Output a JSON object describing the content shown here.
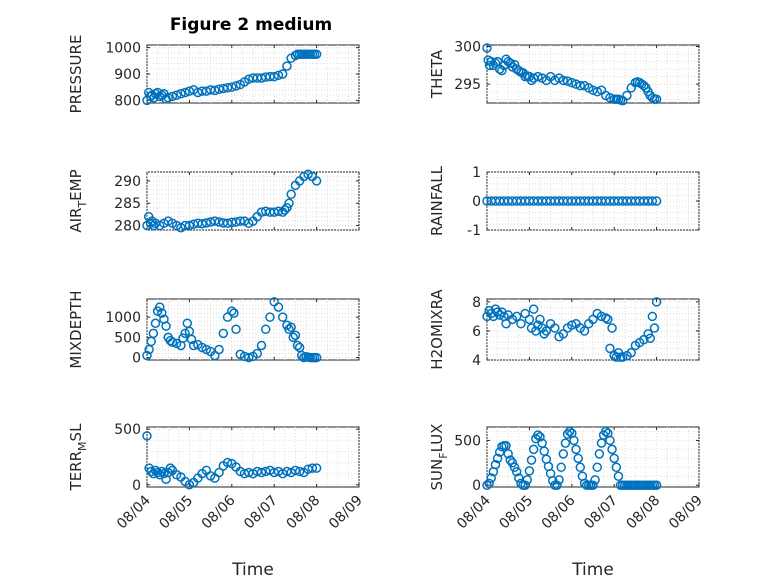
{
  "figure": {
    "title": "Figure 2 medium",
    "marker_color": "#0072bd"
  },
  "chart_data": [
    {
      "id": "pressure",
      "type": "scatter",
      "title": "Figure 2 medium",
      "ylabel": "PRESSURE",
      "ylim": [
        790,
        1010
      ],
      "yticks": [
        800,
        900,
        1000
      ],
      "xlim": [
        0,
        5
      ],
      "xticks": [
        "08/04",
        "08/05",
        "08/06",
        "08/07",
        "08/08",
        "08/09"
      ],
      "xlabel": "",
      "grid": true,
      "x": [
        0,
        0.04,
        0.08,
        0.12,
        0.16,
        0.2,
        0.25,
        0.3,
        0.35,
        0.4,
        0.45,
        0.5,
        0.6,
        0.7,
        0.8,
        0.9,
        1.0,
        1.1,
        1.2,
        1.3,
        1.4,
        1.5,
        1.6,
        1.7,
        1.8,
        1.9,
        2.0,
        2.1,
        2.2,
        2.3,
        2.4,
        2.5,
        2.6,
        2.7,
        2.8,
        2.9,
        3.0,
        3.1,
        3.2,
        3.3,
        3.4,
        3.5,
        3.55,
        3.6,
        3.65,
        3.7,
        3.75,
        3.8,
        3.85,
        3.9,
        3.95,
        4.0
      ],
      "y": [
        800,
        830,
        815,
        820,
        810,
        825,
        830,
        815,
        820,
        825,
        805,
        810,
        815,
        820,
        825,
        830,
        835,
        840,
        830,
        835,
        835,
        840,
        838,
        842,
        845,
        848,
        850,
        855,
        860,
        870,
        880,
        885,
        885,
        885,
        888,
        890,
        890,
        895,
        900,
        930,
        960,
        970,
        975,
        975,
        975,
        975,
        975,
        975,
        975,
        975,
        975,
        975
      ]
    },
    {
      "id": "theta",
      "type": "scatter",
      "ylabel": "THETA",
      "ylim": [
        292.5,
        300.2
      ],
      "yticks": [
        295,
        300
      ],
      "xlim": [
        0,
        5
      ],
      "xticks": [
        "08/04",
        "08/05",
        "08/06",
        "08/07",
        "08/08",
        "08/09"
      ],
      "xlabel": "",
      "grid": true,
      "x": [
        0,
        0.03,
        0.06,
        0.1,
        0.15,
        0.2,
        0.25,
        0.3,
        0.35,
        0.4,
        0.45,
        0.5,
        0.55,
        0.6,
        0.65,
        0.7,
        0.75,
        0.8,
        0.85,
        0.9,
        0.95,
        1.0,
        1.05,
        1.1,
        1.2,
        1.3,
        1.4,
        1.5,
        1.6,
        1.7,
        1.8,
        1.9,
        2.0,
        2.1,
        2.2,
        2.3,
        2.4,
        2.5,
        2.6,
        2.7,
        2.8,
        2.9,
        3.0,
        3.05,
        3.1,
        3.15,
        3.2,
        3.3,
        3.4,
        3.5,
        3.55,
        3.6,
        3.65,
        3.7,
        3.75,
        3.8,
        3.85,
        3.9,
        3.95,
        4.0
      ],
      "y": [
        299.8,
        298.2,
        297.5,
        298,
        297.5,
        297.8,
        298,
        297,
        296.8,
        297.5,
        298.3,
        298,
        297.8,
        297.3,
        297.6,
        297,
        296.8,
        296.6,
        296.5,
        296,
        296.1,
        296,
        295.5,
        295.8,
        296,
        295.8,
        295.5,
        296,
        295.5,
        295.8,
        295.5,
        295.4,
        295.2,
        295,
        294.8,
        294.8,
        294.5,
        294.2,
        294,
        294.2,
        293.5,
        293.2,
        293,
        293,
        293,
        292.9,
        292.8,
        293.5,
        294.5,
        295.2,
        295.3,
        295.2,
        295,
        294.8,
        294.5,
        294,
        293.5,
        293.2,
        293,
        293
      ]
    },
    {
      "id": "air_temp",
      "type": "scatter",
      "ylabel": "AIR",
      "ylabel_sub": "T",
      "ylabel_rest": "EMP",
      "ylim": [
        279,
        292
      ],
      "yticks": [
        280,
        285,
        290
      ],
      "xlim": [
        0,
        5
      ],
      "xticks": [
        "08/04",
        "08/05",
        "08/06",
        "08/07",
        "08/08",
        "08/09"
      ],
      "xlabel": "",
      "grid": true,
      "x": [
        0,
        0.04,
        0.08,
        0.12,
        0.16,
        0.2,
        0.3,
        0.4,
        0.5,
        0.6,
        0.7,
        0.8,
        0.9,
        1.0,
        1.1,
        1.2,
        1.3,
        1.4,
        1.5,
        1.6,
        1.7,
        1.8,
        1.9,
        2.0,
        2.1,
        2.2,
        2.3,
        2.4,
        2.5,
        2.6,
        2.7,
        2.8,
        2.9,
        3.0,
        3.1,
        3.2,
        3.25,
        3.3,
        3.35,
        3.4,
        3.5,
        3.6,
        3.7,
        3.8,
        3.9,
        4.0
      ],
      "y": [
        280,
        282,
        280.5,
        281,
        280,
        280.5,
        280,
        280.5,
        281,
        280.5,
        280,
        279.5,
        280,
        280,
        280.3,
        280.5,
        280.4,
        280.6,
        280.8,
        281,
        280.8,
        280.6,
        280.5,
        280.7,
        280.8,
        281,
        281,
        280.5,
        281,
        282,
        283,
        283.2,
        283,
        283,
        283.2,
        283,
        283.5,
        284,
        285,
        287,
        289,
        290,
        291,
        291.5,
        291,
        290
      ]
    },
    {
      "id": "rainfall",
      "type": "scatter",
      "ylabel": "RAINFALL",
      "ylim": [
        -1,
        1
      ],
      "yticks": [
        -1,
        0,
        1
      ],
      "xlim": [
        0,
        5
      ],
      "xticks": [
        "08/04",
        "08/05",
        "08/06",
        "08/07",
        "08/08",
        "08/09"
      ],
      "xlabel": "",
      "grid": true,
      "x_start": 0,
      "x_end": 4,
      "n_points": 41,
      "value": 0
    },
    {
      "id": "mixdepth",
      "type": "scatter",
      "ylabel": "MIXDEPTH",
      "ylim": [
        -60,
        1450
      ],
      "yticks": [
        0,
        500,
        1000
      ],
      "xlim": [
        0,
        5
      ],
      "xticks": [
        "08/04",
        "08/05",
        "08/06",
        "08/07",
        "08/08",
        "08/09"
      ],
      "xlabel": "",
      "grid": true,
      "x": [
        0,
        0.05,
        0.1,
        0.15,
        0.2,
        0.25,
        0.3,
        0.35,
        0.4,
        0.45,
        0.5,
        0.55,
        0.6,
        0.7,
        0.8,
        0.85,
        0.9,
        0.95,
        1.0,
        1.05,
        1.1,
        1.2,
        1.3,
        1.4,
        1.5,
        1.6,
        1.7,
        1.8,
        1.9,
        2.0,
        2.05,
        2.1,
        2.2,
        2.3,
        2.4,
        2.5,
        2.6,
        2.7,
        2.8,
        2.9,
        3.0,
        3.1,
        3.2,
        3.3,
        3.35,
        3.4,
        3.45,
        3.5,
        3.55,
        3.6,
        3.65,
        3.7,
        3.75,
        3.8,
        3.85,
        3.9,
        3.95,
        4.0
      ],
      "y": [
        50,
        200,
        400,
        600,
        850,
        1150,
        1250,
        1100,
        950,
        780,
        500,
        420,
        380,
        350,
        300,
        480,
        600,
        850,
        650,
        450,
        300,
        320,
        250,
        200,
        150,
        50,
        200,
        600,
        1000,
        1150,
        1100,
        700,
        80,
        30,
        0,
        30,
        100,
        300,
        700,
        1000,
        1380,
        1250,
        1000,
        800,
        700,
        750,
        500,
        550,
        300,
        250,
        50,
        0,
        20,
        10,
        0,
        0,
        0,
        0
      ]
    },
    {
      "id": "h2omixra",
      "type": "scatter",
      "ylabel": "H2OMIXRA",
      "ylim": [
        4,
        8.2
      ],
      "yticks": [
        4,
        6,
        8
      ],
      "xlim": [
        0,
        5
      ],
      "xticks": [
        "08/04",
        "08/05",
        "08/06",
        "08/07",
        "08/08",
        "08/09"
      ],
      "xlabel": "",
      "grid": true,
      "x": [
        0,
        0.05,
        0.1,
        0.15,
        0.2,
        0.25,
        0.3,
        0.35,
        0.4,
        0.45,
        0.5,
        0.6,
        0.7,
        0.8,
        0.9,
        1.0,
        1.05,
        1.1,
        1.15,
        1.2,
        1.25,
        1.3,
        1.35,
        1.4,
        1.5,
        1.6,
        1.7,
        1.8,
        1.9,
        2.0,
        2.1,
        2.2,
        2.3,
        2.4,
        2.5,
        2.6,
        2.7,
        2.8,
        2.85,
        2.9,
        2.95,
        3.0,
        3.05,
        3.1,
        3.15,
        3.2,
        3.3,
        3.4,
        3.5,
        3.6,
        3.7,
        3.8,
        3.85,
        3.9,
        3.95,
        4.0
      ],
      "y": [
        7.0,
        7.4,
        7.2,
        7.0,
        7.5,
        7.3,
        7.1,
        7.3,
        7.0,
        6.5,
        7.1,
        6.8,
        7.0,
        6.5,
        7.2,
        6.8,
        6.2,
        7.5,
        6.0,
        6.4,
        6.8,
        6.2,
        5.8,
        6.0,
        6.5,
        6.2,
        5.6,
        5.8,
        6.2,
        6.4,
        6.5,
        6.2,
        6.0,
        6.5,
        6.8,
        7.2,
        7.0,
        6.9,
        6.8,
        4.8,
        6.2,
        4.3,
        4.2,
        4.5,
        4.2,
        4.2,
        4.3,
        4.5,
        5.0,
        5.2,
        5.4,
        5.8,
        5.5,
        7.0,
        6.2,
        8.0
      ]
    },
    {
      "id": "terr_msl",
      "type": "scatter",
      "ylabel": "TERR",
      "ylabel_sub": "M",
      "ylabel_rest": "SL",
      "ylim": [
        -20,
        520
      ],
      "yticks": [
        0,
        500
      ],
      "xlim": [
        0,
        5
      ],
      "xticks": [
        "08/04",
        "08/05",
        "08/06",
        "08/07",
        "08/08",
        "08/09"
      ],
      "xlabel": "Time",
      "grid": true,
      "x": [
        0,
        0.05,
        0.1,
        0.15,
        0.2,
        0.25,
        0.3,
        0.35,
        0.4,
        0.45,
        0.5,
        0.55,
        0.6,
        0.7,
        0.8,
        0.9,
        1.0,
        1.1,
        1.2,
        1.3,
        1.4,
        1.5,
        1.6,
        1.7,
        1.8,
        1.9,
        2.0,
        2.1,
        2.2,
        2.3,
        2.4,
        2.5,
        2.6,
        2.7,
        2.8,
        2.9,
        3.0,
        3.1,
        3.2,
        3.3,
        3.4,
        3.5,
        3.6,
        3.7,
        3.8,
        3.9,
        4.0
      ],
      "y": [
        440,
        150,
        120,
        100,
        130,
        110,
        90,
        120,
        100,
        50,
        110,
        150,
        130,
        90,
        70,
        30,
        0,
        20,
        60,
        100,
        130,
        80,
        60,
        110,
        170,
        200,
        190,
        160,
        120,
        100,
        110,
        100,
        120,
        110,
        120,
        130,
        110,
        120,
        100,
        120,
        110,
        130,
        120,
        110,
        140,
        150,
        150
      ]
    },
    {
      "id": "sun_flux",
      "type": "scatter",
      "ylabel": "SUN",
      "ylabel_sub": "F",
      "ylabel_rest": "LUX",
      "ylim": [
        -20,
        650
      ],
      "yticks": [
        0,
        500
      ],
      "xlim": [
        0,
        5
      ],
      "xticks": [
        "08/04",
        "08/05",
        "08/06",
        "08/07",
        "08/08",
        "08/09"
      ],
      "xlabel": "Time",
      "grid": true,
      "x": [
        0,
        0.05,
        0.1,
        0.15,
        0.2,
        0.25,
        0.3,
        0.35,
        0.4,
        0.45,
        0.5,
        0.55,
        0.6,
        0.65,
        0.7,
        0.75,
        0.8,
        0.85,
        0.9,
        0.95,
        1.0,
        1.05,
        1.1,
        1.15,
        1.2,
        1.25,
        1.3,
        1.35,
        1.4,
        1.45,
        1.5,
        1.55,
        1.6,
        1.65,
        1.7,
        1.75,
        1.8,
        1.85,
        1.9,
        1.95,
        2.0,
        2.05,
        2.1,
        2.15,
        2.2,
        2.25,
        2.3,
        2.35,
        2.4,
        2.45,
        2.5,
        2.55,
        2.6,
        2.65,
        2.7,
        2.75,
        2.8,
        2.85,
        2.9,
        2.95,
        3.0,
        3.05,
        3.1,
        3.15,
        3.2,
        3.25,
        3.3,
        3.35,
        3.4,
        3.45,
        3.5,
        3.55,
        3.6,
        3.65,
        3.7,
        3.75,
        3.8,
        3.85,
        3.9,
        3.95,
        4.0
      ],
      "y": [
        0,
        20,
        80,
        150,
        230,
        300,
        370,
        430,
        440,
        440,
        350,
        280,
        250,
        200,
        150,
        80,
        20,
        0,
        0,
        60,
        160,
        280,
        400,
        520,
        560,
        540,
        470,
        380,
        290,
        210,
        130,
        50,
        0,
        0,
        60,
        200,
        350,
        470,
        570,
        600,
        580,
        500,
        400,
        300,
        200,
        100,
        20,
        0,
        0,
        0,
        0,
        60,
        200,
        350,
        470,
        560,
        600,
        580,
        500,
        400,
        300,
        200,
        100,
        0,
        0,
        0,
        0,
        0,
        0,
        0,
        0,
        0,
        0,
        0,
        0,
        0,
        0,
        0,
        0,
        0,
        0
      ]
    }
  ]
}
